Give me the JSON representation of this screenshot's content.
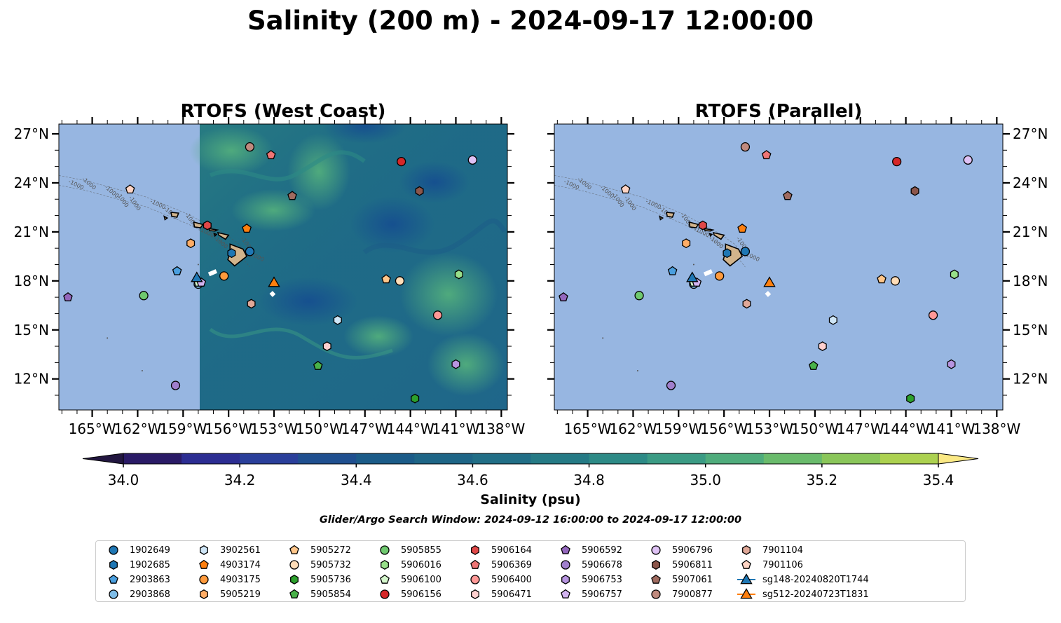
{
  "title": "Salinity (200 m) - 2024-09-17 12:00:00",
  "panels": [
    {
      "title": "RTOFS (West Coast)",
      "kind": "field"
    },
    {
      "title": "RTOFS (Parallel)",
      "kind": "empty"
    }
  ],
  "axes": {
    "x_ticks": [
      "165°W",
      "162°W",
      "159°W",
      "156°W",
      "153°W",
      "150°W",
      "147°W",
      "144°W",
      "141°W",
      "138°W"
    ],
    "x_values": [
      -165,
      -162,
      -159,
      -156,
      -153,
      -150,
      -147,
      -144,
      -141,
      -138
    ],
    "y_ticks": [
      "27°N",
      "24°N",
      "21°N",
      "18°N",
      "15°N",
      "12°N"
    ],
    "y_values": [
      27,
      24,
      21,
      18,
      15,
      12
    ],
    "xlim": [
      -167.2,
      -137.6
    ],
    "ylim": [
      10.1,
      27.6
    ]
  },
  "colorbar": {
    "label": "Salinity (psu)",
    "ticks": [
      "34.0",
      "34.2",
      "34.4",
      "34.6",
      "34.8",
      "35.0",
      "35.2",
      "35.4"
    ],
    "tick_values": [
      34.0,
      34.2,
      34.4,
      34.6,
      34.8,
      35.0,
      35.2,
      35.4
    ],
    "range": [
      34.0,
      35.4
    ],
    "step": 0.1,
    "colors": [
      "#2a1a66",
      "#2c2d92",
      "#2a3f9a",
      "#1f4f8f",
      "#1b5b88",
      "#1e6586",
      "#216e86",
      "#257a85",
      "#2d8a86",
      "#3b9b84",
      "#4fac7c",
      "#6abb6c",
      "#8ac65a",
      "#acd150",
      "#d1dc62"
    ],
    "extend_high": "#fbe985",
    "extend_low": "#221640"
  },
  "search_window": "Glider/Argo Search Window: 2024-09-12 16:00:00 to 2024-09-17 12:00:00",
  "land_color": "#d2b48c",
  "ocean_color": "#97b6e1",
  "contour_label": "-1000",
  "chart_data": {
    "type": "scatter",
    "x_label": "",
    "y_label": "",
    "series": [
      {
        "name": "1902649",
        "marker": "circle",
        "color": "#1f77b4",
        "lon": -154.6,
        "lat": 19.8
      },
      {
        "name": "1902685",
        "marker": "hexagon",
        "color": "#1f77b4",
        "lon": -155.8,
        "lat": 19.7
      },
      {
        "name": "2903863",
        "marker": "pentagon",
        "color": "#4a9fdf",
        "lon": -159.4,
        "lat": 18.6
      },
      {
        "name": "2903868",
        "marker": "circle",
        "color": "#7fbde8",
        "lon": -158.0,
        "lat": 17.8
      },
      {
        "name": "3902561",
        "marker": "hexagon",
        "color": "#cfe6f7",
        "lon": -148.8,
        "lat": 15.6
      },
      {
        "name": "4903174",
        "marker": "pentagon",
        "color": "#ff7f0e",
        "lon": -154.8,
        "lat": 21.2
      },
      {
        "name": "4903175",
        "marker": "circle",
        "color": "#ff9a3c",
        "lon": -156.3,
        "lat": 18.3
      },
      {
        "name": "5905219",
        "marker": "hexagon",
        "color": "#ffad66",
        "lon": -158.5,
        "lat": 20.3
      },
      {
        "name": "5905272",
        "marker": "pentagon",
        "color": "#ffc68a",
        "lon": -145.6,
        "lat": 18.1
      },
      {
        "name": "5905732",
        "marker": "circle",
        "color": "#ffddb8",
        "lon": -144.7,
        "lat": 18.0
      },
      {
        "name": "5905736",
        "marker": "hexagon",
        "color": "#2ca02c",
        "lon": -143.7,
        "lat": 10.8
      },
      {
        "name": "5905854",
        "marker": "pentagon",
        "color": "#49b249",
        "lon": -150.1,
        "lat": 12.8
      },
      {
        "name": "5905855",
        "marker": "circle",
        "color": "#6fc96f",
        "lon": -161.6,
        "lat": 17.1
      },
      {
        "name": "5906016",
        "marker": "hexagon",
        "color": "#98df8a",
        "lon": -140.8,
        "lat": 18.4
      },
      {
        "name": "5906100",
        "marker": "pentagon",
        "color": "#d4f7cc",
        "lon": -158.0,
        "lat": 17.9
      },
      {
        "name": "5906156",
        "marker": "circle",
        "color": "#d62728",
        "lon": -144.6,
        "lat": 25.3
      },
      {
        "name": "5906164",
        "marker": "hexagon",
        "color": "#e04848",
        "lon": -157.4,
        "lat": 21.4
      },
      {
        "name": "5906369",
        "marker": "pentagon",
        "color": "#ee7575",
        "lon": -153.2,
        "lat": 25.7
      },
      {
        "name": "5906400",
        "marker": "circle",
        "color": "#ff9896",
        "lon": -142.2,
        "lat": 15.9
      },
      {
        "name": "5906471",
        "marker": "hexagon",
        "color": "#ffd0cf",
        "lon": -149.5,
        "lat": 14.0
      },
      {
        "name": "5906592",
        "marker": "pentagon",
        "color": "#9467bd",
        "lon": -166.6,
        "lat": 17.0
      },
      {
        "name": "5906678",
        "marker": "circle",
        "color": "#a07fcc",
        "lon": -159.5,
        "lat": 11.6
      },
      {
        "name": "5906753",
        "marker": "hexagon",
        "color": "#b794e0",
        "lon": -141.0,
        "lat": 12.9
      },
      {
        "name": "5906757",
        "marker": "pentagon",
        "color": "#d2b3f0",
        "lon": -157.8,
        "lat": 17.9
      },
      {
        "name": "5906796",
        "marker": "circle",
        "color": "#dfc2f5",
        "lon": -139.9,
        "lat": 25.4
      },
      {
        "name": "5906811",
        "marker": "hexagon",
        "color": "#8c564b",
        "lon": -143.4,
        "lat": 23.5
      },
      {
        "name": "5907061",
        "marker": "pentagon",
        "color": "#a06b60",
        "lon": -151.8,
        "lat": 23.2
      },
      {
        "name": "7900877",
        "marker": "circle",
        "color": "#c08a7e",
        "lon": -154.6,
        "lat": 26.2
      },
      {
        "name": "7901104",
        "marker": "hexagon",
        "color": "#e0a898",
        "lon": -154.5,
        "lat": 16.6
      },
      {
        "name": "7901106",
        "marker": "pentagon",
        "color": "#ffd4c4",
        "lon": -162.5,
        "lat": 23.6
      },
      {
        "name": "sg148-20240820T1744",
        "marker": "triangle",
        "color": "#1f77b4",
        "lon": -158.1,
        "lat": 18.2
      },
      {
        "name": "sg512-20240723T1831",
        "marker": "triangle",
        "color": "#ff7f0e",
        "lon": -153.0,
        "lat": 17.9
      }
    ]
  }
}
